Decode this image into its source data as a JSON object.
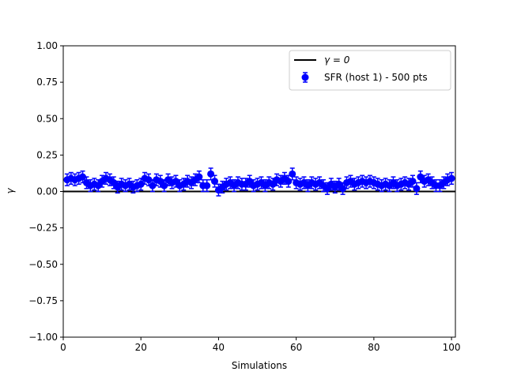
{
  "chart_data": {
    "type": "scatter",
    "title": "",
    "xlabel": "Simulations",
    "ylabel": "γ",
    "xlim": [
      0,
      101
    ],
    "ylim": [
      -1.0,
      1.0
    ],
    "grid": false,
    "legend_placement": "top-right",
    "xticks": [
      "0",
      "20",
      "40",
      "60",
      "80",
      "100"
    ],
    "yticks": [
      "1.00",
      "0.75",
      "0.50",
      "0.25",
      "0.00",
      "−0.25",
      "−0.50",
      "−0.75",
      "−1.00"
    ],
    "reference_line": {
      "label": "γ = 0",
      "value": 0,
      "color": "#000000"
    },
    "series": [
      {
        "name": "SFR (host 1) - 500 pts",
        "color": "#0000ff",
        "x": [
          1,
          2,
          3,
          4,
          5,
          6,
          7,
          8,
          9,
          10,
          11,
          12,
          13,
          14,
          15,
          16,
          17,
          18,
          19,
          20,
          21,
          22,
          23,
          24,
          25,
          26,
          27,
          28,
          29,
          30,
          31,
          32,
          33,
          34,
          35,
          36,
          37,
          38,
          39,
          40,
          41,
          42,
          43,
          44,
          45,
          46,
          47,
          48,
          49,
          50,
          51,
          52,
          53,
          54,
          55,
          56,
          57,
          58,
          59,
          60,
          61,
          62,
          63,
          64,
          65,
          66,
          67,
          68,
          69,
          70,
          71,
          72,
          73,
          74,
          75,
          76,
          77,
          78,
          79,
          80,
          81,
          82,
          83,
          84,
          85,
          86,
          87,
          88,
          89,
          90,
          91,
          92,
          93,
          94,
          95,
          96,
          97,
          98,
          99,
          100
        ],
        "y": [
          0.08,
          0.09,
          0.08,
          0.09,
          0.1,
          0.06,
          0.04,
          0.05,
          0.04,
          0.07,
          0.09,
          0.08,
          0.06,
          0.03,
          0.05,
          0.04,
          0.05,
          0.03,
          0.04,
          0.05,
          0.09,
          0.08,
          0.04,
          0.08,
          0.07,
          0.04,
          0.08,
          0.06,
          0.07,
          0.04,
          0.05,
          0.07,
          0.06,
          0.08,
          0.1,
          0.04,
          0.04,
          0.12,
          0.07,
          0.01,
          0.03,
          0.05,
          0.06,
          0.04,
          0.06,
          0.05,
          0.05,
          0.07,
          0.04,
          0.05,
          0.06,
          0.04,
          0.06,
          0.05,
          0.08,
          0.07,
          0.09,
          0.07,
          0.12,
          0.06,
          0.05,
          0.06,
          0.04,
          0.06,
          0.05,
          0.06,
          0.04,
          0.02,
          0.05,
          0.03,
          0.05,
          0.02,
          0.06,
          0.07,
          0.05,
          0.06,
          0.07,
          0.06,
          0.07,
          0.06,
          0.05,
          0.04,
          0.05,
          0.04,
          0.06,
          0.04,
          0.05,
          0.06,
          0.05,
          0.07,
          0.02,
          0.1,
          0.07,
          0.08,
          0.06,
          0.04,
          0.04,
          0.06,
          0.08,
          0.09
        ],
        "err": [
          0.04,
          0.04,
          0.04,
          0.04,
          0.04,
          0.04,
          0.04,
          0.04,
          0.04,
          0.04,
          0.04,
          0.04,
          0.04,
          0.04,
          0.04,
          0.04,
          0.04,
          0.04,
          0.04,
          0.04,
          0.04,
          0.04,
          0.04,
          0.04,
          0.04,
          0.04,
          0.04,
          0.04,
          0.04,
          0.04,
          0.04,
          0.04,
          0.04,
          0.04,
          0.04,
          0.04,
          0.04,
          0.04,
          0.04,
          0.04,
          0.04,
          0.04,
          0.04,
          0.04,
          0.04,
          0.04,
          0.04,
          0.04,
          0.04,
          0.04,
          0.04,
          0.04,
          0.04,
          0.04,
          0.04,
          0.04,
          0.04,
          0.04,
          0.04,
          0.04,
          0.04,
          0.04,
          0.04,
          0.04,
          0.04,
          0.04,
          0.04,
          0.04,
          0.04,
          0.04,
          0.04,
          0.04,
          0.04,
          0.04,
          0.04,
          0.04,
          0.04,
          0.04,
          0.04,
          0.04,
          0.04,
          0.04,
          0.04,
          0.04,
          0.04,
          0.04,
          0.04,
          0.04,
          0.04,
          0.04,
          0.04,
          0.04,
          0.04,
          0.04,
          0.04,
          0.04,
          0.04,
          0.04,
          0.04,
          0.04
        ]
      }
    ]
  }
}
